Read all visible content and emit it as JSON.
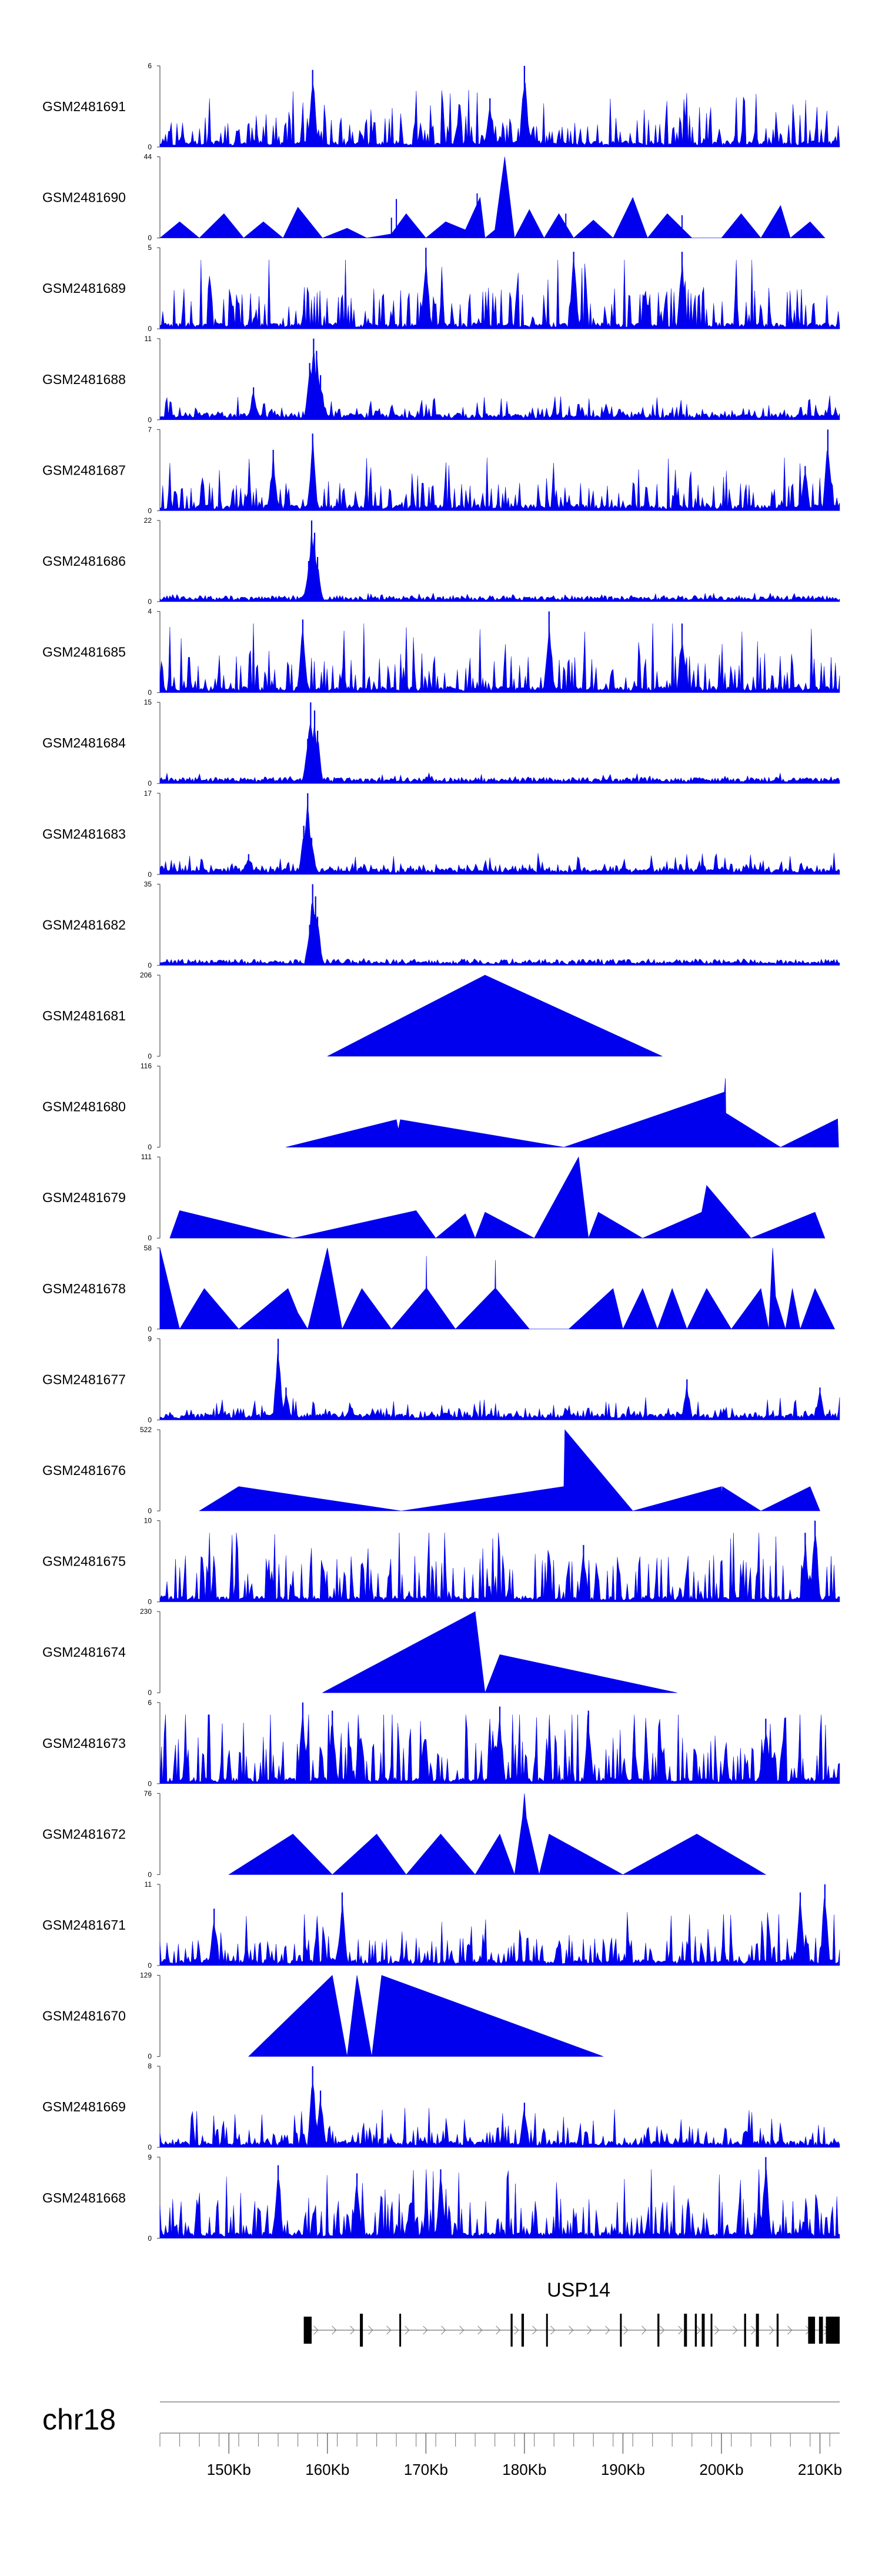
{
  "chart_data": {
    "type": "area",
    "title": "",
    "chromosome": "chr18",
    "gene": "USP14",
    "x_unit": "Kb",
    "xlim": [
      143,
      212
    ],
    "x_ticks": [
      150,
      160,
      170,
      180,
      190,
      200,
      210
    ],
    "x_tick_labels": [
      "150Kb",
      "160Kb",
      "170Kb",
      "180Kb",
      "190Kb",
      "200Kb",
      "210Kb"
    ],
    "colors": {
      "signal": "#0000ee",
      "axis": "#555555",
      "gene": "#000000",
      "text": "#000000"
    },
    "tracks": [
      {
        "name": "GSM2481691",
        "ymax": 6,
        "y_tick_labels": [
          "6",
          "0"
        ],
        "pattern": "dense",
        "seed": 11,
        "base": 0.32,
        "peaks": [
          [
            158.5,
            0.95
          ],
          [
            180.0,
            1.0
          ],
          [
            176.5,
            0.6
          ]
        ]
      },
      {
        "name": "GSM2481690",
        "ymax": 44,
        "y_tick_labels": [
          "44",
          "0"
        ],
        "pattern": "sparse",
        "points": [
          [
            143.0,
            0
          ],
          [
            145.0,
            0.2
          ],
          [
            147.0,
            0
          ],
          [
            149.5,
            0.3
          ],
          [
            151.5,
            0
          ],
          [
            153.5,
            0.2
          ],
          [
            155.5,
            0
          ],
          [
            157.0,
            0.38
          ],
          [
            159.5,
            0
          ],
          [
            162.0,
            0.12
          ],
          [
            164.0,
            0
          ],
          [
            166.5,
            0.05
          ],
          [
            168.0,
            0.3
          ],
          [
            170.0,
            0
          ],
          [
            172.0,
            0.2
          ],
          [
            174.0,
            0.1
          ],
          [
            175.5,
            0.5
          ],
          [
            176.0,
            0
          ],
          [
            177.0,
            0.1
          ],
          [
            178.0,
            1.0
          ],
          [
            179.0,
            0
          ],
          [
            180.5,
            0.35
          ],
          [
            182.0,
            0
          ],
          [
            183.5,
            0.3
          ],
          [
            185.0,
            0
          ],
          [
            187.0,
            0.22
          ],
          [
            189.0,
            0
          ],
          [
            191.0,
            0.5
          ],
          [
            192.5,
            0
          ],
          [
            194.5,
            0.3
          ],
          [
            197.0,
            0
          ],
          [
            200.0,
            0
          ],
          [
            202.0,
            0.3
          ],
          [
            204.0,
            0
          ],
          [
            206.0,
            0.4
          ],
          [
            207.0,
            0
          ],
          [
            209.0,
            0.2
          ],
          [
            210.5,
            0
          ]
        ],
        "spikes": [
          [
            166.5,
            0.25
          ],
          [
            167.0,
            0.48
          ],
          [
            175.2,
            0.55
          ],
          [
            184.2,
            0.3
          ],
          [
            196.0,
            0.28
          ]
        ]
      },
      {
        "name": "GSM2481689",
        "ymax": 5,
        "y_tick_labels": [
          "5",
          "0"
        ],
        "pattern": "dense",
        "seed": 23,
        "base": 0.45,
        "peaks": [
          [
            170.0,
            1.0
          ],
          [
            185.0,
            0.95
          ],
          [
            196.0,
            0.95
          ]
        ]
      },
      {
        "name": "GSM2481688",
        "ymax": 11,
        "y_tick_labels": [
          "11",
          "0"
        ],
        "pattern": "dense",
        "seed": 31,
        "base": 0.14,
        "peaks": [
          [
            158.6,
            1.0
          ],
          [
            158.9,
            0.85
          ],
          [
            158.2,
            0.7
          ],
          [
            159.3,
            0.55
          ],
          [
            152.5,
            0.4
          ]
        ]
      },
      {
        "name": "GSM2481687",
        "ymax": 7,
        "y_tick_labels": [
          "7",
          "0"
        ],
        "pattern": "dense",
        "seed": 43,
        "base": 0.3,
        "peaks": [
          [
            158.5,
            0.95
          ],
          [
            154.5,
            0.75
          ],
          [
            210.8,
            1.0
          ],
          [
            208.5,
            0.55
          ]
        ]
      },
      {
        "name": "GSM2481686",
        "ymax": 22,
        "y_tick_labels": [
          "22",
          "0"
        ],
        "pattern": "dense",
        "seed": 47,
        "base": 0.05,
        "peaks": [
          [
            158.4,
            1.0
          ],
          [
            158.7,
            0.85
          ],
          [
            159.0,
            0.55
          ],
          [
            158.1,
            0.5
          ]
        ]
      },
      {
        "name": "GSM2481685",
        "ymax": 4,
        "y_tick_labels": [
          "4",
          "0"
        ],
        "pattern": "dense",
        "seed": 59,
        "base": 0.42,
        "peaks": [
          [
            182.5,
            1.0
          ],
          [
            157.5,
            0.9
          ],
          [
            196.0,
            0.85
          ]
        ]
      },
      {
        "name": "GSM2481684",
        "ymax": 15,
        "y_tick_labels": [
          "15",
          "0"
        ],
        "pattern": "dense",
        "seed": 61,
        "base": 0.06,
        "peaks": [
          [
            158.3,
            1.0
          ],
          [
            158.7,
            0.9
          ],
          [
            159.0,
            0.65
          ],
          [
            158.0,
            0.55
          ]
        ]
      },
      {
        "name": "GSM2481683",
        "ymax": 17,
        "y_tick_labels": [
          "17",
          "0"
        ],
        "pattern": "dense",
        "seed": 71,
        "base": 0.12,
        "peaks": [
          [
            158.0,
            1.0
          ],
          [
            157.6,
            0.6
          ],
          [
            158.4,
            0.45
          ],
          [
            152.0,
            0.25
          ]
        ]
      },
      {
        "name": "GSM2481682",
        "ymax": 35,
        "y_tick_labels": [
          "35",
          "0"
        ],
        "pattern": "dense",
        "seed": 83,
        "base": 0.04,
        "peaks": [
          [
            158.5,
            1.0
          ],
          [
            158.8,
            0.85
          ],
          [
            159.0,
            0.6
          ],
          [
            158.2,
            0.5
          ]
        ]
      },
      {
        "name": "GSM2481681",
        "ymax": 206,
        "y_tick_labels": [
          "206",
          "0"
        ],
        "pattern": "sparse",
        "points": [
          [
            160.0,
            0
          ],
          [
            176.0,
            1.0
          ],
          [
            194.0,
            0
          ]
        ]
      },
      {
        "name": "GSM2481680",
        "ymax": 116,
        "y_tick_labels": [
          "116",
          "0"
        ],
        "pattern": "sparse",
        "points": [
          [
            155.8,
            0
          ],
          [
            167.0,
            0.34
          ],
          [
            167.2,
            0.22
          ],
          [
            167.4,
            0.34
          ],
          [
            184.0,
            0
          ],
          [
            200.3,
            0.68
          ],
          [
            200.4,
            0.85
          ],
          [
            200.45,
            0.42
          ],
          [
            206.0,
            0
          ],
          [
            211.8,
            0.35
          ],
          [
            211.9,
            0
          ]
        ]
      },
      {
        "name": "GSM2481679",
        "ymax": 111,
        "y_tick_labels": [
          "111",
          "0"
        ],
        "pattern": "sparse",
        "points": [
          [
            144.0,
            0
          ],
          [
            145.0,
            0.34
          ],
          [
            156.5,
            0
          ],
          [
            169.0,
            0.34
          ],
          [
            171.0,
            0
          ],
          [
            174.0,
            0.3
          ],
          [
            175.0,
            0
          ],
          [
            176.0,
            0.32
          ],
          [
            181.0,
            0
          ],
          [
            185.5,
            1.0
          ],
          [
            186.5,
            0
          ],
          [
            187.5,
            0.32
          ],
          [
            192.0,
            0
          ],
          [
            198.0,
            0.32
          ],
          [
            198.5,
            0.65
          ],
          [
            203.0,
            0
          ],
          [
            209.5,
            0.32
          ],
          [
            210.5,
            0
          ]
        ]
      },
      {
        "name": "GSM2481678",
        "ymax": 58,
        "y_tick_labels": [
          "58",
          "0"
        ],
        "pattern": "sparse",
        "points": [
          [
            143.0,
            1.0
          ],
          [
            145.0,
            0
          ],
          [
            147.5,
            0.5
          ],
          [
            151.0,
            0
          ],
          [
            156.0,
            0.5
          ],
          [
            157.0,
            0.2
          ],
          [
            158.0,
            0
          ],
          [
            160.0,
            1.0
          ],
          [
            161.5,
            0
          ],
          [
            163.5,
            0.5
          ],
          [
            166.5,
            0
          ],
          [
            170.0,
            0.5
          ],
          [
            170.05,
            0.9
          ],
          [
            170.1,
            0.5
          ],
          [
            173.0,
            0
          ],
          [
            177.0,
            0.5
          ],
          [
            177.05,
            0.85
          ],
          [
            177.1,
            0.5
          ],
          [
            180.5,
            0
          ],
          [
            184.5,
            0
          ],
          [
            189.0,
            0.5
          ],
          [
            190.0,
            0
          ],
          [
            192.0,
            0.5
          ],
          [
            193.5,
            0
          ],
          [
            195.0,
            0.5
          ],
          [
            196.5,
            0
          ],
          [
            198.5,
            0.5
          ],
          [
            201.0,
            0
          ],
          [
            204.0,
            0.5
          ],
          [
            204.8,
            0
          ],
          [
            205.2,
            1.0
          ],
          [
            205.5,
            0.4
          ],
          [
            206.5,
            0
          ],
          [
            207.2,
            0.5
          ],
          [
            208.0,
            0
          ],
          [
            209.5,
            0.5
          ],
          [
            211.5,
            0
          ]
        ]
      },
      {
        "name": "GSM2481677",
        "ymax": 9,
        "y_tick_labels": [
          "9",
          "0"
        ],
        "pattern": "dense",
        "seed": 97,
        "base": 0.13,
        "peaks": [
          [
            155.0,
            1.0
          ],
          [
            155.8,
            0.4
          ],
          [
            196.5,
            0.5
          ],
          [
            210.0,
            0.4
          ]
        ]
      },
      {
        "name": "GSM2481676",
        "ymax": 522,
        "y_tick_labels": [
          "522",
          "0"
        ],
        "pattern": "sparse",
        "points": [
          [
            147.0,
            0
          ],
          [
            151.0,
            0.3
          ],
          [
            167.5,
            0
          ],
          [
            184.0,
            0.3
          ],
          [
            184.1,
            1.0
          ],
          [
            191.0,
            0
          ],
          [
            200.0,
            0.3
          ],
          [
            200.05,
            0.2
          ],
          [
            200.1,
            0.3
          ],
          [
            204.0,
            0
          ],
          [
            209.0,
            0.3
          ],
          [
            210.0,
            0
          ]
        ]
      },
      {
        "name": "GSM2481675",
        "ymax": 10,
        "y_tick_labels": [
          "10",
          "0"
        ],
        "pattern": "dense",
        "seed": 101,
        "base": 0.5,
        "peaks": [
          [
            209.5,
            1.0
          ],
          [
            208.5,
            0.85
          ],
          [
            186.0,
            0.7
          ]
        ]
      },
      {
        "name": "GSM2481674",
        "ymax": 230,
        "y_tick_labels": [
          "230",
          "0"
        ],
        "pattern": "sparse",
        "points": [
          [
            159.5,
            0
          ],
          [
            175.0,
            1.0
          ],
          [
            176.0,
            0
          ],
          [
            177.5,
            0.47
          ],
          [
            195.5,
            0
          ]
        ]
      },
      {
        "name": "GSM2481673",
        "ymax": 6,
        "y_tick_labels": [
          "6",
          "0"
        ],
        "pattern": "dense",
        "seed": 113,
        "base": 0.52,
        "peaks": [
          [
            157.5,
            1.0
          ],
          [
            160.5,
            0.9
          ],
          [
            177.5,
            0.95
          ],
          [
            186.5,
            0.9
          ],
          [
            204.5,
            0.8
          ]
        ]
      },
      {
        "name": "GSM2481672",
        "ymax": 76,
        "y_tick_labels": [
          "76",
          "0"
        ],
        "pattern": "sparse",
        "points": [
          [
            150.0,
            0
          ],
          [
            156.5,
            0.5
          ],
          [
            160.5,
            0
          ],
          [
            165.0,
            0.5
          ],
          [
            168.0,
            0
          ],
          [
            171.5,
            0.5
          ],
          [
            175.0,
            0
          ],
          [
            177.5,
            0.5
          ],
          [
            179.0,
            0
          ],
          [
            179.8,
            0.7
          ],
          [
            180.0,
            1.0
          ],
          [
            180.2,
            0.7
          ],
          [
            181.5,
            0
          ],
          [
            182.5,
            0.5
          ],
          [
            190.0,
            0
          ],
          [
            197.5,
            0.5
          ],
          [
            204.5,
            0
          ]
        ]
      },
      {
        "name": "GSM2481671",
        "ymax": 11,
        "y_tick_labels": [
          "11",
          "0"
        ],
        "pattern": "dense",
        "seed": 127,
        "base": 0.3,
        "peaks": [
          [
            161.5,
            0.9
          ],
          [
            210.5,
            1.0
          ],
          [
            208.0,
            0.9
          ],
          [
            148.5,
            0.7
          ]
        ]
      },
      {
        "name": "GSM2481670",
        "ymax": 129,
        "y_tick_labels": [
          "129",
          "0"
        ],
        "pattern": "sparse",
        "points": [
          [
            152.0,
            0
          ],
          [
            160.5,
            1.0
          ],
          [
            162.0,
            0
          ],
          [
            163.0,
            1.0
          ],
          [
            164.5,
            0
          ],
          [
            165.5,
            1.0
          ],
          [
            188.0,
            0
          ]
        ]
      },
      {
        "name": "GSM2481669",
        "ymax": 8,
        "y_tick_labels": [
          "8",
          "0"
        ],
        "pattern": "dense",
        "seed": 137,
        "base": 0.22,
        "peaks": [
          [
            158.5,
            1.0
          ],
          [
            159.3,
            0.7
          ],
          [
            180.0,
            0.55
          ]
        ]
      },
      {
        "name": "GSM2481668",
        "ymax": 9,
        "y_tick_labels": [
          "9",
          "0"
        ],
        "pattern": "dense",
        "seed": 149,
        "base": 0.4,
        "peaks": [
          [
            204.5,
            1.0
          ],
          [
            155.0,
            0.9
          ],
          [
            163.0,
            0.8
          ],
          [
            171.5,
            0.85
          ]
        ]
      }
    ],
    "gene_model": {
      "name": "USP14",
      "start": 157.6,
      "end": 212.0,
      "strand": "+",
      "exons": [
        [
          157.6,
          158.4
        ],
        [
          163.3,
          163.6
        ],
        [
          167.3,
          167.45
        ],
        [
          178.6,
          178.8
        ],
        [
          179.7,
          179.95
        ],
        [
          182.2,
          182.35
        ],
        [
          189.7,
          189.85
        ],
        [
          193.5,
          193.7
        ],
        [
          196.2,
          196.5
        ],
        [
          197.3,
          197.5
        ],
        [
          198.0,
          198.3
        ],
        [
          198.9,
          199.05
        ],
        [
          202.3,
          202.5
        ],
        [
          203.5,
          203.8
        ],
        [
          205.6,
          205.8
        ],
        [
          208.8,
          209.5
        ],
        [
          209.9,
          210.3
        ],
        [
          210.6,
          212.0
        ]
      ]
    }
  }
}
